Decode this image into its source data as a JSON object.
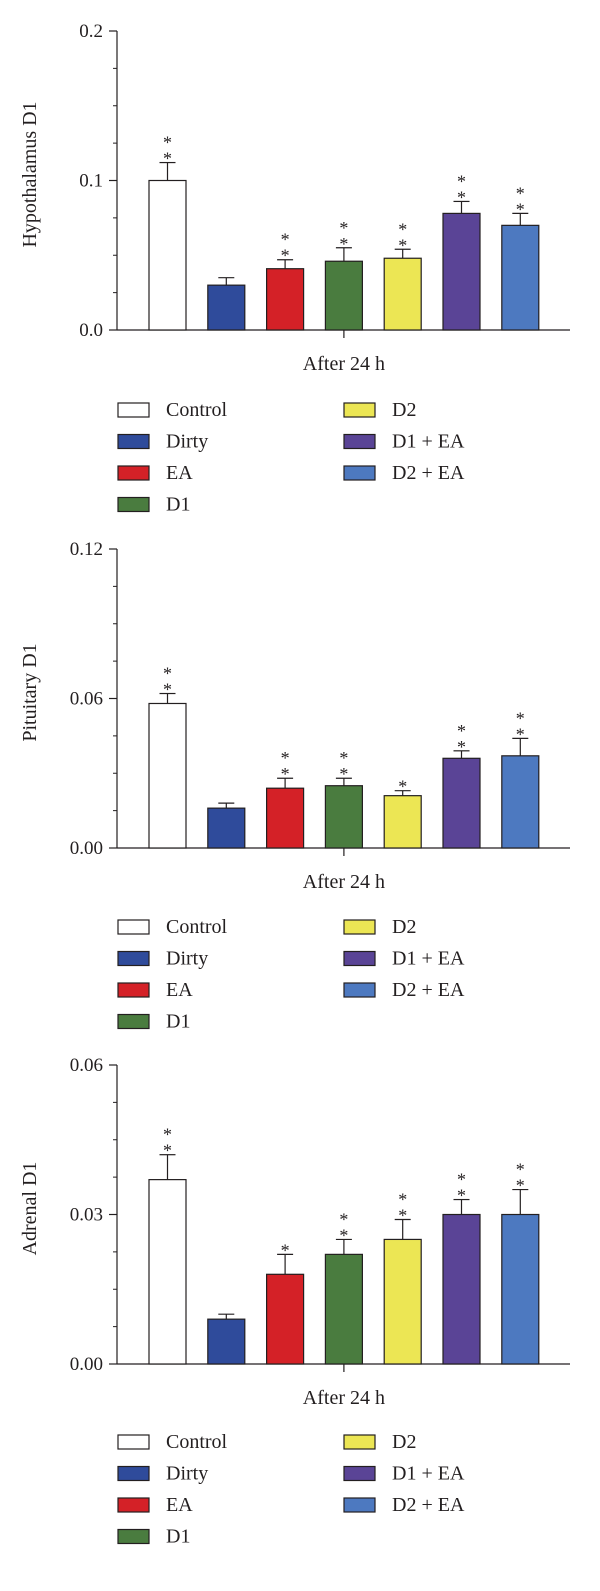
{
  "colors": {
    "Control": "#ffffff",
    "Dirty": "#2f4b9b",
    "EA": "#d42127",
    "D1": "#4a7c3f",
    "D2": "#ece654",
    "D1 + EA": "#5a4496",
    "D2 + EA": "#4d79c0"
  },
  "legend": {
    "left": [
      "Control",
      "Dirty",
      "EA",
      "D1"
    ],
    "right": [
      "D2",
      "D1 + EA",
      "D2 + EA"
    ]
  },
  "chart_data": [
    {
      "type": "bar",
      "ylabel": "Hypothalamus D1",
      "xlabel": "After 24 h",
      "ylim": [
        0,
        0.2
      ],
      "yticks": [
        0.0,
        0.1,
        0.2
      ],
      "ytick_labels": [
        "0.0",
        "0.1",
        "0.2"
      ],
      "categories": [
        "Control",
        "Dirty",
        "EA",
        "D1",
        "D2",
        "D1 + EA",
        "D2 + EA"
      ],
      "values": [
        0.1,
        0.03,
        0.041,
        0.046,
        0.048,
        0.078,
        0.07
      ],
      "errors": [
        0.012,
        0.005,
        0.006,
        0.009,
        0.006,
        0.008,
        0.008
      ],
      "significance": [
        "**",
        "",
        "**",
        "**",
        "**",
        "**",
        "**"
      ]
    },
    {
      "type": "bar",
      "ylabel": "Pituitary D1",
      "xlabel": "After 24 h",
      "ylim": [
        0,
        0.12
      ],
      "yticks": [
        0.0,
        0.06,
        0.12
      ],
      "ytick_labels": [
        "0.00",
        "0.06",
        "0.12"
      ],
      "categories": [
        "Control",
        "Dirty",
        "EA",
        "D1",
        "D2",
        "D1 + EA",
        "D2 + EA"
      ],
      "values": [
        0.058,
        0.016,
        0.024,
        0.025,
        0.021,
        0.036,
        0.037
      ],
      "errors": [
        0.004,
        0.002,
        0.004,
        0.003,
        0.002,
        0.003,
        0.007
      ],
      "significance": [
        "**",
        "",
        "**",
        "**",
        "*",
        "**",
        "**"
      ]
    },
    {
      "type": "bar",
      "ylabel": "Adrenal D1",
      "xlabel": "After 24 h",
      "ylim": [
        0,
        0.06
      ],
      "yticks": [
        0.0,
        0.03,
        0.06
      ],
      "ytick_labels": [
        "0.00",
        "0.03",
        "0.06"
      ],
      "categories": [
        "Control",
        "Dirty",
        "EA",
        "D1",
        "D2",
        "D1 + EA",
        "D2 + EA"
      ],
      "values": [
        0.037,
        0.009,
        0.018,
        0.022,
        0.025,
        0.03,
        0.03
      ],
      "errors": [
        0.005,
        0.001,
        0.004,
        0.003,
        0.004,
        0.003,
        0.005
      ],
      "significance": [
        "**",
        "",
        "*",
        "**",
        "**",
        "**",
        "**"
      ]
    }
  ]
}
